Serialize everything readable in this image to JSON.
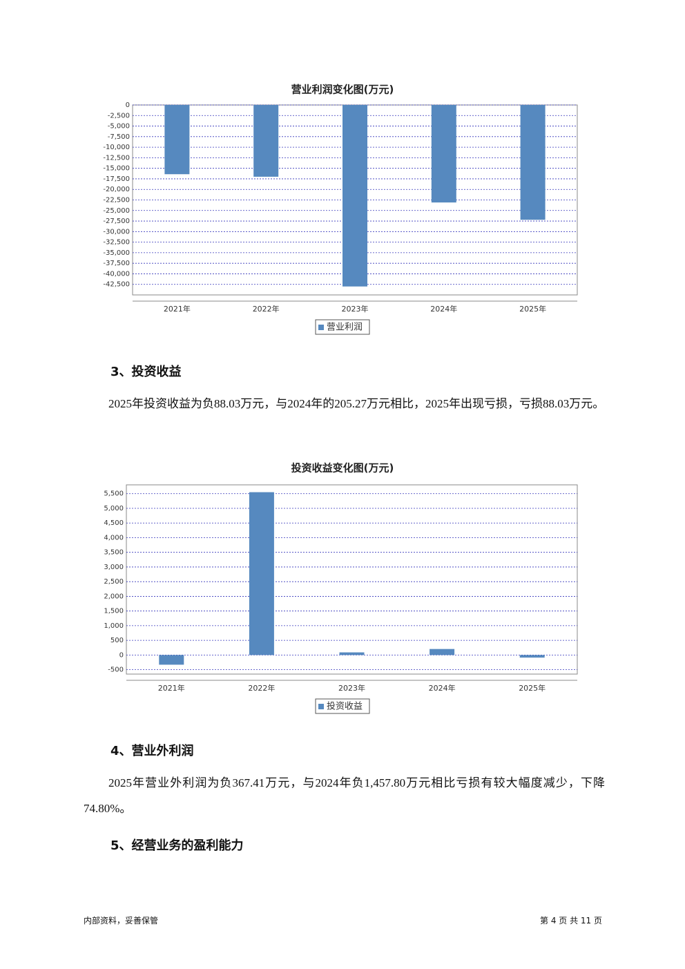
{
  "chart_data": [
    {
      "type": "bar",
      "title": "营业利润变化图(万元)",
      "categories": [
        "2021年",
        "2022年",
        "2023年",
        "2024年",
        "2025年"
      ],
      "series": [
        {
          "name": "营业利润",
          "color": "#5689bf",
          "values": [
            -16400,
            -17000,
            -43000,
            -23100,
            -27200
          ]
        }
      ],
      "ylim": [
        -45000,
        0
      ],
      "yticks": [
        0,
        {
          "value": -2500,
          "label": "-2,500"
        },
        {
          "value": -5000,
          "label": "-5,000"
        },
        {
          "value": -7500,
          "label": "-7,500"
        },
        {
          "value": -10000,
          "label": "-10,000"
        },
        {
          "value": -12500,
          "label": "-12,500"
        },
        {
          "value": -15000,
          "label": "-15,000"
        },
        {
          "value": -17500,
          "label": "-17,500"
        },
        {
          "value": -20000,
          "label": "-20,000"
        },
        {
          "value": -22500,
          "label": "-22,500"
        },
        {
          "value": -25000,
          "label": "-25,000"
        },
        {
          "value": -27500,
          "label": "-27,500"
        },
        {
          "value": -30000,
          "label": "-30,000"
        },
        {
          "value": -32500,
          "label": "-32,500"
        },
        {
          "value": -35000,
          "label": "-35,000"
        },
        {
          "value": -37500,
          "label": "-37,500"
        },
        {
          "value": -40000,
          "label": "-40,000"
        },
        {
          "value": -42500,
          "label": "-42,500"
        }
      ],
      "grid": true
    },
    {
      "type": "bar",
      "title": "投资收益变化图(万元)",
      "categories": [
        "2021年",
        "2022年",
        "2023年",
        "2024年",
        "2025年"
      ],
      "series": [
        {
          "name": "投资收益",
          "color": "#5689bf",
          "values": [
            -330,
            5550,
            90,
            205.27,
            -88.03
          ]
        }
      ],
      "ylim": [
        -650,
        5800
      ],
      "yticks": [
        -500,
        0,
        500,
        {
          "value": 1000,
          "label": "1,000"
        },
        {
          "value": 1500,
          "label": "1,500"
        },
        {
          "value": 2000,
          "label": "2,000"
        },
        {
          "value": 2500,
          "label": "2,500"
        },
        {
          "value": 3000,
          "label": "3,000"
        },
        {
          "value": 3500,
          "label": "3,500"
        },
        {
          "value": 4000,
          "label": "4,000"
        },
        {
          "value": 4500,
          "label": "4,500"
        },
        {
          "value": 5000,
          "label": "5,000"
        },
        {
          "value": 5500,
          "label": "5,500"
        }
      ],
      "grid": true
    }
  ],
  "sections": [
    {
      "heading": "3、投资收益",
      "text": "2025年投资收益为负88.03万元，与2024年的205.27万元相比，2025年出现亏损，亏损88.03万元。"
    },
    {
      "heading": "4、营业外利润",
      "text": "2025年营业外利润为负367.41万元，与2024年负1,457.80万元相比亏损有较大幅度减少，下降74.80%。"
    },
    {
      "heading": "5、经营业务的盈利能力"
    }
  ],
  "footer": {
    "left": "内部资料，妥善保管",
    "right": "第 4 页 共 11 页"
  }
}
